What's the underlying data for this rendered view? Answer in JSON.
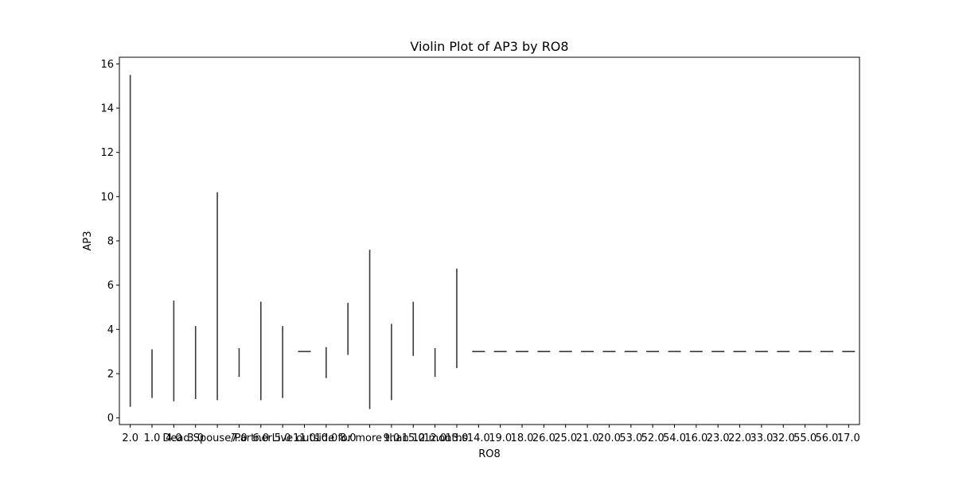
{
  "chart_data": {
    "type": "violin",
    "title": "Violin Plot of AP3 by RO8",
    "xlabel": "RO8",
    "ylabel": "AP3",
    "ylim": [
      -0.3,
      16.3
    ],
    "yticks": [
      0,
      2,
      4,
      6,
      8,
      10,
      12,
      14,
      16
    ],
    "ytick_labels": [
      "0",
      "2",
      "4",
      "6",
      "8",
      "10",
      "12",
      "14",
      "16"
    ],
    "grid": false,
    "categories": [
      "2.0",
      "1.0",
      "4.0",
      "3.0",
      "Dead Spouse/Partner",
      "7.0",
      "6.0",
      "5.0",
      "11.0",
      "10.0",
      "8.0",
      "Live outside for more than 12 months",
      "9.0",
      "15.0",
      "12.0",
      "13.0",
      "14.0",
      "19.0",
      "18.0",
      "26.0",
      "25.0",
      "21.0",
      "20.0",
      "53.0",
      "52.0",
      "54.0",
      "16.0",
      "23.0",
      "22.0",
      "33.0",
      "32.0",
      "55.0",
      "56.0",
      "17.0"
    ],
    "series": [
      {
        "color": "#3a3a3a",
        "ranges": [
          [
            0.5,
            15.5
          ],
          [
            0.9,
            3.1
          ],
          [
            0.75,
            5.3
          ],
          [
            0.85,
            4.15
          ],
          [
            0.8,
            10.2
          ],
          [
            1.85,
            3.15
          ],
          [
            0.8,
            5.25
          ],
          [
            0.9,
            4.15
          ],
          [
            3.0,
            3.0
          ],
          [
            1.8,
            3.2
          ],
          [
            2.85,
            5.2
          ],
          [
            0.4,
            7.6
          ],
          [
            0.8,
            4.25
          ],
          [
            2.8,
            5.25
          ],
          [
            1.85,
            3.15
          ],
          [
            2.25,
            6.75
          ],
          [
            3.0,
            3.0
          ],
          [
            3.0,
            3.0
          ],
          [
            3.0,
            3.0
          ],
          [
            3.0,
            3.0
          ],
          [
            3.0,
            3.0
          ],
          [
            3.0,
            3.0
          ],
          [
            3.0,
            3.0
          ],
          [
            3.0,
            3.0
          ],
          [
            3.0,
            3.0
          ],
          [
            3.0,
            3.0
          ],
          [
            3.0,
            3.0
          ],
          [
            3.0,
            3.0
          ],
          [
            3.0,
            3.0
          ],
          [
            3.0,
            3.0
          ],
          [
            3.0,
            3.0
          ],
          [
            3.0,
            3.0
          ],
          [
            3.0,
            3.0
          ],
          [
            3.0,
            3.0
          ]
        ]
      }
    ]
  }
}
